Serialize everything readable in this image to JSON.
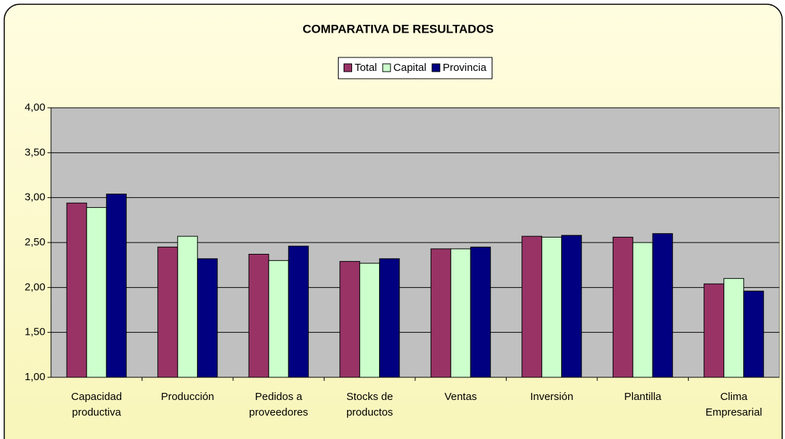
{
  "chart_data": {
    "type": "bar",
    "title": "COMPARATIVA DE RESULTADOS",
    "categories": [
      "Capacidad\nproductiva",
      "Producción",
      "Pedidos a\nproveedores",
      "Stocks de\nproductos",
      "Ventas",
      "Inversión",
      "Plantilla",
      "Clima\nEmpresarial"
    ],
    "series": [
      {
        "name": "Total",
        "color": "#993366",
        "values": [
          2.94,
          2.45,
          2.37,
          2.29,
          2.43,
          2.57,
          2.56,
          2.04
        ]
      },
      {
        "name": "Capital",
        "color": "#ccffcc",
        "values": [
          2.89,
          2.57,
          2.3,
          2.27,
          2.43,
          2.56,
          2.5,
          2.1
        ]
      },
      {
        "name": "Provincia",
        "color": "#000080",
        "values": [
          3.04,
          2.32,
          2.46,
          2.32,
          2.45,
          2.58,
          2.6,
          1.96
        ]
      }
    ],
    "ylim": [
      1,
      4
    ],
    "yticks": [
      {
        "value": 1,
        "label": "1,00"
      },
      {
        "value": 1.5,
        "label": "1,50"
      },
      {
        "value": 2,
        "label": "2,00"
      },
      {
        "value": 2.5,
        "label": "2,50"
      },
      {
        "value": 3,
        "label": "3,00"
      },
      {
        "value": 3.5,
        "label": "3,50"
      },
      {
        "value": 4,
        "label": "4,00"
      }
    ],
    "grid": true,
    "legend": "top",
    "plot_background": "#c0c0c0"
  }
}
